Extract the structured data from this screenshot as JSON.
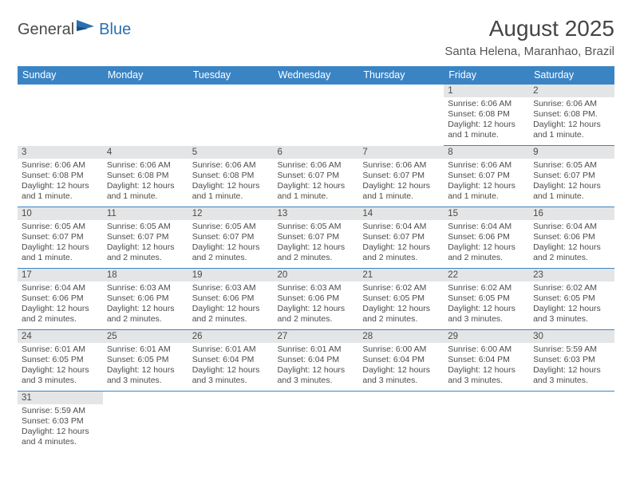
{
  "colors": {
    "header_blue": "#3b84c4",
    "daybar_gray": "#e4e5e6",
    "row_divider": "#3b84c4",
    "text_dark": "#454545",
    "logo_blue": "#2b6fb0"
  },
  "logo": {
    "part1": "General",
    "part2": "Blue"
  },
  "title": "August 2025",
  "location": "Santa Helena, Maranhao, Brazil",
  "weekdays": [
    "Sunday",
    "Monday",
    "Tuesday",
    "Wednesday",
    "Thursday",
    "Friday",
    "Saturday"
  ],
  "weeks": [
    [
      {
        "n": "",
        "lines": []
      },
      {
        "n": "",
        "lines": []
      },
      {
        "n": "",
        "lines": []
      },
      {
        "n": "",
        "lines": []
      },
      {
        "n": "",
        "lines": []
      },
      {
        "n": "1",
        "lines": [
          "Sunrise: 6:06 AM",
          "Sunset: 6:08 PM",
          "Daylight: 12 hours",
          "and 1 minute."
        ]
      },
      {
        "n": "2",
        "lines": [
          "Sunrise: 6:06 AM",
          "Sunset: 6:08 PM.",
          "Daylight: 12 hours",
          "and 1 minute."
        ]
      }
    ],
    [
      {
        "n": "3",
        "lines": [
          "Sunrise: 6:06 AM",
          "Sunset: 6:08 PM",
          "Daylight: 12 hours",
          "and 1 minute."
        ]
      },
      {
        "n": "4",
        "lines": [
          "Sunrise: 6:06 AM",
          "Sunset: 6:08 PM",
          "Daylight: 12 hours",
          "and 1 minute."
        ]
      },
      {
        "n": "5",
        "lines": [
          "Sunrise: 6:06 AM",
          "Sunset: 6:08 PM",
          "Daylight: 12 hours",
          "and 1 minute."
        ]
      },
      {
        "n": "6",
        "lines": [
          "Sunrise: 6:06 AM",
          "Sunset: 6:07 PM",
          "Daylight: 12 hours",
          "and 1 minute."
        ]
      },
      {
        "n": "7",
        "lines": [
          "Sunrise: 6:06 AM",
          "Sunset: 6:07 PM",
          "Daylight: 12 hours",
          "and 1 minute."
        ]
      },
      {
        "n": "8",
        "lines": [
          "Sunrise: 6:06 AM",
          "Sunset: 6:07 PM",
          "Daylight: 12 hours",
          "and 1 minute."
        ]
      },
      {
        "n": "9",
        "lines": [
          "Sunrise: 6:05 AM",
          "Sunset: 6:07 PM",
          "Daylight: 12 hours",
          "and 1 minute."
        ]
      }
    ],
    [
      {
        "n": "10",
        "lines": [
          "Sunrise: 6:05 AM",
          "Sunset: 6:07 PM",
          "Daylight: 12 hours",
          "and 1 minute."
        ]
      },
      {
        "n": "11",
        "lines": [
          "Sunrise: 6:05 AM",
          "Sunset: 6:07 PM",
          "Daylight: 12 hours",
          "and 2 minutes."
        ]
      },
      {
        "n": "12",
        "lines": [
          "Sunrise: 6:05 AM",
          "Sunset: 6:07 PM",
          "Daylight: 12 hours",
          "and 2 minutes."
        ]
      },
      {
        "n": "13",
        "lines": [
          "Sunrise: 6:05 AM",
          "Sunset: 6:07 PM",
          "Daylight: 12 hours",
          "and 2 minutes."
        ]
      },
      {
        "n": "14",
        "lines": [
          "Sunrise: 6:04 AM",
          "Sunset: 6:07 PM",
          "Daylight: 12 hours",
          "and 2 minutes."
        ]
      },
      {
        "n": "15",
        "lines": [
          "Sunrise: 6:04 AM",
          "Sunset: 6:06 PM",
          "Daylight: 12 hours",
          "and 2 minutes."
        ]
      },
      {
        "n": "16",
        "lines": [
          "Sunrise: 6:04 AM",
          "Sunset: 6:06 PM",
          "Daylight: 12 hours",
          "and 2 minutes."
        ]
      }
    ],
    [
      {
        "n": "17",
        "lines": [
          "Sunrise: 6:04 AM",
          "Sunset: 6:06 PM",
          "Daylight: 12 hours",
          "and 2 minutes."
        ]
      },
      {
        "n": "18",
        "lines": [
          "Sunrise: 6:03 AM",
          "Sunset: 6:06 PM",
          "Daylight: 12 hours",
          "and 2 minutes."
        ]
      },
      {
        "n": "19",
        "lines": [
          "Sunrise: 6:03 AM",
          "Sunset: 6:06 PM",
          "Daylight: 12 hours",
          "and 2 minutes."
        ]
      },
      {
        "n": "20",
        "lines": [
          "Sunrise: 6:03 AM",
          "Sunset: 6:06 PM",
          "Daylight: 12 hours",
          "and 2 minutes."
        ]
      },
      {
        "n": "21",
        "lines": [
          "Sunrise: 6:02 AM",
          "Sunset: 6:05 PM",
          "Daylight: 12 hours",
          "and 2 minutes."
        ]
      },
      {
        "n": "22",
        "lines": [
          "Sunrise: 6:02 AM",
          "Sunset: 6:05 PM",
          "Daylight: 12 hours",
          "and 3 minutes."
        ]
      },
      {
        "n": "23",
        "lines": [
          "Sunrise: 6:02 AM",
          "Sunset: 6:05 PM",
          "Daylight: 12 hours",
          "and 3 minutes."
        ]
      }
    ],
    [
      {
        "n": "24",
        "lines": [
          "Sunrise: 6:01 AM",
          "Sunset: 6:05 PM",
          "Daylight: 12 hours",
          "and 3 minutes."
        ]
      },
      {
        "n": "25",
        "lines": [
          "Sunrise: 6:01 AM",
          "Sunset: 6:05 PM",
          "Daylight: 12 hours",
          "and 3 minutes."
        ]
      },
      {
        "n": "26",
        "lines": [
          "Sunrise: 6:01 AM",
          "Sunset: 6:04 PM",
          "Daylight: 12 hours",
          "and 3 minutes."
        ]
      },
      {
        "n": "27",
        "lines": [
          "Sunrise: 6:01 AM",
          "Sunset: 6:04 PM",
          "Daylight: 12 hours",
          "and 3 minutes."
        ]
      },
      {
        "n": "28",
        "lines": [
          "Sunrise: 6:00 AM",
          "Sunset: 6:04 PM",
          "Daylight: 12 hours",
          "and 3 minutes."
        ]
      },
      {
        "n": "29",
        "lines": [
          "Sunrise: 6:00 AM",
          "Sunset: 6:04 PM",
          "Daylight: 12 hours",
          "and 3 minutes."
        ]
      },
      {
        "n": "30",
        "lines": [
          "Sunrise: 5:59 AM",
          "Sunset: 6:03 PM",
          "Daylight: 12 hours",
          "and 3 minutes."
        ]
      }
    ],
    [
      {
        "n": "31",
        "lines": [
          "Sunrise: 5:59 AM",
          "Sunset: 6:03 PM",
          "Daylight: 12 hours",
          "and 4 minutes."
        ]
      },
      {
        "n": "",
        "lines": []
      },
      {
        "n": "",
        "lines": []
      },
      {
        "n": "",
        "lines": []
      },
      {
        "n": "",
        "lines": []
      },
      {
        "n": "",
        "lines": []
      },
      {
        "n": "",
        "lines": []
      }
    ]
  ]
}
